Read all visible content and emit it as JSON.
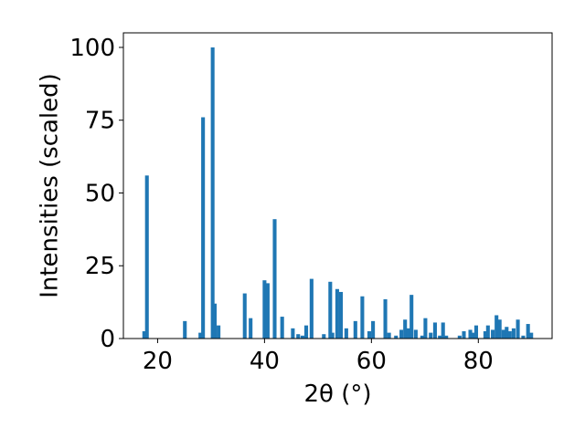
{
  "chart_data": {
    "type": "bar",
    "xlabel": "2θ (°)",
    "ylabel": "Intensities (scaled)",
    "xlim": [
      13.6,
      93.8
    ],
    "ylim": [
      0,
      105
    ],
    "xticks": [
      20,
      40,
      60,
      80
    ],
    "yticks": [
      0,
      25,
      50,
      75,
      100
    ],
    "xtick_labels": [
      "20",
      "40",
      "60",
      "80"
    ],
    "ytick_labels": [
      "0",
      "25",
      "50",
      "75",
      "100"
    ],
    "bar_width": 0.7,
    "color": "#1f77b4",
    "grid": false,
    "x": [
      17.5,
      18.0,
      25.1,
      28.0,
      28.5,
      30.3,
      30.7,
      31.4,
      36.3,
      37.4,
      40.0,
      40.6,
      41.9,
      43.3,
      45.3,
      46.3,
      47.1,
      47.8,
      48.8,
      51.1,
      52.3,
      52.7,
      53.6,
      54.3,
      55.3,
      57.0,
      58.3,
      59.6,
      60.3,
      62.6,
      63.3,
      64.6,
      65.6,
      66.3,
      66.9,
      67.5,
      68.3,
      69.5,
      70.1,
      71.1,
      71.9,
      72.8,
      73.4,
      74.0,
      76.5,
      77.3,
      78.5,
      79.0,
      79.6,
      81.3,
      81.8,
      82.7,
      83.4,
      84.0,
      84.7,
      85.3,
      85.9,
      86.6,
      87.4,
      88.4,
      89.3,
      89.9
    ],
    "values": [
      2.5,
      56,
      6,
      2,
      76,
      100,
      12,
      4.5,
      15.5,
      7,
      20,
      19,
      41,
      7.5,
      3.5,
      1.5,
      1,
      4.5,
      20.5,
      1.5,
      19.5,
      2,
      17,
      16,
      3.5,
      6,
      14.5,
      2.5,
      6,
      13.5,
      2,
      1,
      3,
      6.5,
      3.5,
      15,
      3,
      1,
      7,
      2,
      5.5,
      1,
      5.5,
      1,
      1,
      2.5,
      3,
      2,
      4.5,
      2.5,
      4.5,
      3,
      8,
      6.5,
      3,
      4,
      2.5,
      3.5,
      6.5,
      1,
      5,
      2
    ]
  }
}
